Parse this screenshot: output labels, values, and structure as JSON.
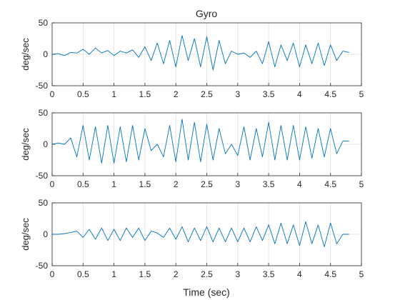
{
  "figure": {
    "title": "Gyro",
    "xlabel": "Time (sec)"
  },
  "chart_data": [
    {
      "type": "line",
      "title": "Gyro",
      "ylabel": "deg/sec",
      "xlabel": "",
      "xlim": [
        0,
        5
      ],
      "ylim": [
        -50,
        50
      ],
      "xticks": [
        "0",
        "0.5",
        "1",
        "1.5",
        "2",
        "2.5",
        "3",
        "3.5",
        "4",
        "4.5",
        "5"
      ],
      "yticks": [
        "-50",
        "0",
        "50"
      ],
      "grid": true,
      "color": "#0072bd",
      "series": [
        {
          "x": [
            0,
            0.1,
            0.2,
            0.3,
            0.4,
            0.5,
            0.6,
            0.7,
            0.8,
            0.9,
            1.0,
            1.1,
            1.2,
            1.3,
            1.4,
            1.5,
            1.6,
            1.7,
            1.8,
            1.9,
            2.0,
            2.1,
            2.2,
            2.3,
            2.4,
            2.5,
            2.6,
            2.7,
            2.8,
            2.9,
            3.0,
            3.1,
            3.2,
            3.3,
            3.4,
            3.5,
            3.6,
            3.7,
            3.8,
            3.9,
            4.0,
            4.1,
            4.2,
            4.3,
            4.4,
            4.5,
            4.6,
            4.7,
            4.8
          ],
          "y": [
            0,
            1,
            -2,
            3,
            2,
            8,
            0,
            10,
            2,
            6,
            -2,
            5,
            2,
            7,
            -5,
            12,
            -10,
            18,
            -15,
            22,
            -20,
            30,
            -10,
            25,
            -20,
            28,
            -25,
            22,
            -15,
            5,
            0,
            2,
            -5,
            5,
            -15,
            20,
            -20,
            15,
            -10,
            18,
            -20,
            15,
            -15,
            18,
            -18,
            15,
            -10,
            5,
            3
          ]
        }
      ]
    },
    {
      "type": "line",
      "title": "",
      "ylabel": "deg/sec",
      "xlabel": "",
      "xlim": [
        0,
        5
      ],
      "ylim": [
        -50,
        50
      ],
      "xticks": [
        "0",
        "0.5",
        "1",
        "1.5",
        "2",
        "2.5",
        "3",
        "3.5",
        "4",
        "4.5",
        "5"
      ],
      "yticks": [
        "-50",
        "0",
        "50"
      ],
      "grid": true,
      "color": "#0072bd",
      "series": [
        {
          "x": [
            0,
            0.1,
            0.2,
            0.3,
            0.4,
            0.5,
            0.6,
            0.7,
            0.8,
            0.9,
            1.0,
            1.1,
            1.2,
            1.3,
            1.4,
            1.5,
            1.6,
            1.7,
            1.8,
            1.9,
            2.0,
            2.1,
            2.2,
            2.3,
            2.4,
            2.5,
            2.6,
            2.7,
            2.8,
            2.9,
            3.0,
            3.1,
            3.2,
            3.3,
            3.4,
            3.5,
            3.6,
            3.7,
            3.8,
            3.9,
            4.0,
            4.1,
            4.2,
            4.3,
            4.4,
            4.5,
            4.6,
            4.7,
            4.8
          ],
          "y": [
            0,
            2,
            0,
            10,
            -20,
            30,
            -25,
            28,
            -30,
            30,
            -30,
            28,
            -28,
            30,
            -25,
            25,
            -10,
            0,
            -20,
            30,
            -28,
            40,
            -25,
            35,
            -28,
            32,
            -25,
            25,
            -15,
            0,
            -18,
            28,
            -25,
            25,
            -20,
            35,
            -25,
            30,
            -25,
            30,
            -25,
            28,
            -22,
            25,
            -20,
            25,
            -15,
            5,
            5
          ]
        }
      ]
    },
    {
      "type": "line",
      "title": "",
      "ylabel": "deg/sec",
      "xlabel": "Time (sec)",
      "xlim": [
        0,
        5
      ],
      "ylim": [
        -50,
        50
      ],
      "xticks": [
        "0",
        "0.5",
        "1",
        "1.5",
        "2",
        "2.5",
        "3",
        "3.5",
        "4",
        "4.5",
        "5"
      ],
      "yticks": [
        "-50",
        "0",
        "50"
      ],
      "grid": true,
      "color": "#0072bd",
      "series": [
        {
          "x": [
            0,
            0.1,
            0.2,
            0.3,
            0.4,
            0.5,
            0.6,
            0.7,
            0.8,
            0.9,
            1.0,
            1.1,
            1.2,
            1.3,
            1.4,
            1.5,
            1.6,
            1.7,
            1.8,
            1.9,
            2.0,
            2.1,
            2.2,
            2.3,
            2.4,
            2.5,
            2.6,
            2.7,
            2.8,
            2.9,
            3.0,
            3.1,
            3.2,
            3.3,
            3.4,
            3.5,
            3.6,
            3.7,
            3.8,
            3.9,
            4.0,
            4.1,
            4.2,
            4.3,
            4.4,
            4.5,
            4.6,
            4.7,
            4.8
          ],
          "y": [
            0,
            0,
            1,
            3,
            5,
            -5,
            8,
            -8,
            10,
            -10,
            8,
            -10,
            10,
            -5,
            10,
            -10,
            5,
            2,
            -5,
            10,
            -8,
            12,
            -12,
            10,
            -10,
            12,
            -12,
            10,
            -12,
            10,
            -12,
            10,
            -12,
            12,
            -10,
            15,
            -15,
            18,
            -15,
            15,
            -18,
            20,
            -15,
            15,
            -20,
            18,
            -15,
            0,
            0
          ]
        }
      ]
    }
  ]
}
